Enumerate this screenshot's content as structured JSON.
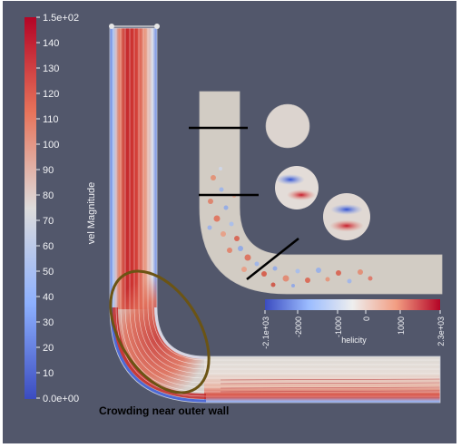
{
  "velocity_colorbar": {
    "title": "vel Magnitude",
    "max_label": "1.5e+02",
    "min_label": "0.0e+00",
    "tick_labels": [
      "140",
      "130",
      "120",
      "110",
      "100",
      "90",
      "80",
      "70",
      "60",
      "50",
      "40",
      "30",
      "20",
      "10"
    ]
  },
  "helicity_colorbar": {
    "title": "helicity",
    "min_label": "-2.1e+03",
    "max_label": "2.3e+03",
    "tick_labels": [
      "-2000",
      "-1000",
      "0",
      "1000"
    ]
  },
  "annotation": {
    "caption": "Crowding near outer wall"
  },
  "colors": {
    "background": "#52576b",
    "high": "#b40426",
    "mid": "#dddcdc",
    "low": "#3b4cc0",
    "annotation_ellipse": "#6b5414"
  }
}
